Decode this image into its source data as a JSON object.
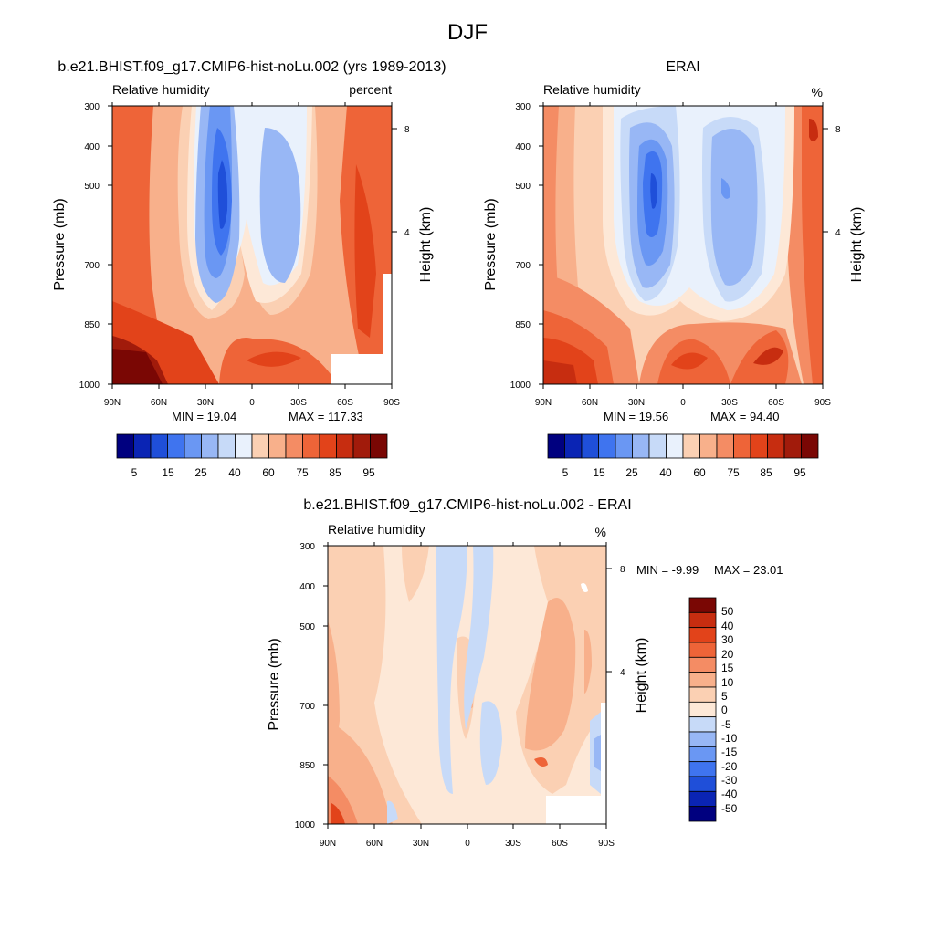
{
  "figure_title": "DJF",
  "colors": {
    "rh_palette": [
      "#00007f",
      "#0a24b4",
      "#1f4fd9",
      "#3f74ef",
      "#6a97f3",
      "#98b7f5",
      "#c7daf8",
      "#e9f1fc",
      "#fde8d7",
      "#fbd0b3",
      "#f8b08b",
      "#f48c64",
      "#ee6438",
      "#e2431a",
      "#c72d10",
      "#a11b0b",
      "#7a0704"
    ],
    "diff_palette": [
      "#00007f",
      "#0a24b4",
      "#1f4fd9",
      "#3f74ef",
      "#6a97f3",
      "#98b7f5",
      "#c7daf8",
      "#fde8d7",
      "#fbd0b3",
      "#f8b08b",
      "#f48c64",
      "#ee6438",
      "#e2431a",
      "#c72d10",
      "#7a0704"
    ]
  },
  "chart_data": [
    {
      "type": "heatmap",
      "title": "b.e21.BHIST.f09_g17.CMIP6-hist-noLu.002 (yrs 1989-2013)",
      "left_label": "Relative humidity",
      "units": "percent",
      "ylabel": "Pressure (mb)",
      "y2label": "Height (km)",
      "xticks": [
        "90N",
        "60N",
        "30N",
        "0",
        "30S",
        "60S",
        "90S"
      ],
      "yticks": [
        "300",
        "400",
        "500",
        "700",
        "850",
        "1000"
      ],
      "y2ticks": [
        "8",
        "4"
      ],
      "ylim": [
        1000,
        300
      ],
      "min_label": "MIN = 19.04",
      "max_label": "MAX = 117.33",
      "colorbar_labels": [
        "5",
        "15",
        "25",
        "40",
        "60",
        "75",
        "85",
        "95"
      ],
      "colorbar_levels": 16
    },
    {
      "type": "heatmap",
      "title": "ERAI",
      "left_label": "Relative humidity",
      "units": "%",
      "ylabel": "Pressure (mb)",
      "y2label": "Height (km)",
      "xticks": [
        "90N",
        "60N",
        "30N",
        "0",
        "30S",
        "60S",
        "90S"
      ],
      "yticks": [
        "300",
        "400",
        "500",
        "700",
        "850",
        "1000"
      ],
      "y2ticks": [
        "8",
        "4"
      ],
      "ylim": [
        1000,
        300
      ],
      "min_label": "MIN = 19.56",
      "max_label": "MAX = 94.40",
      "colorbar_labels": [
        "5",
        "15",
        "25",
        "40",
        "60",
        "75",
        "85",
        "95"
      ],
      "colorbar_levels": 16
    },
    {
      "type": "heatmap",
      "title": "b.e21.BHIST.f09_g17.CMIP6-hist-noLu.002 - ERAI",
      "left_label": "Relative humidity",
      "units": "%",
      "ylabel": "Pressure (mb)",
      "y2label": "Height (km)",
      "xticks": [
        "90N",
        "60N",
        "30N",
        "0",
        "30S",
        "60S",
        "90S"
      ],
      "yticks": [
        "300",
        "400",
        "500",
        "700",
        "850",
        "1000"
      ],
      "y2ticks": [
        "8",
        "4"
      ],
      "ylim": [
        1000,
        300
      ],
      "min_label": "MIN = -9.99",
      "max_label": "MAX = 23.01",
      "colorbar_labels": [
        "50",
        "40",
        "30",
        "20",
        "15",
        "10",
        "5",
        "0",
        "-5",
        "-10",
        "-15",
        "-20",
        "-30",
        "-40",
        "-50"
      ],
      "colorbar_levels": 15
    }
  ]
}
